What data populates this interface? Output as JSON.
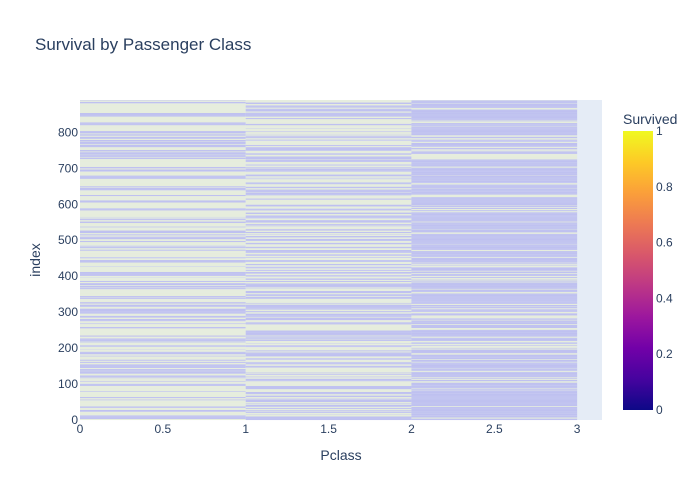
{
  "chart_data": {
    "type": "heatmap",
    "title": "Survival by Passenger Class",
    "xlabel": "Pclass",
    "ylabel": "index",
    "x": [
      0,
      1,
      2
    ],
    "x_cell_width": 1,
    "xlim": [
      0,
      3.15
    ],
    "ylim": [
      0,
      890
    ],
    "xticks": [
      "0",
      "0.5",
      "1",
      "1.5",
      "2",
      "2.5",
      "3"
    ],
    "xtick_values": [
      0,
      0.5,
      1,
      1.5,
      2,
      2.5,
      3
    ],
    "yticks": [
      "0",
      "100",
      "200",
      "300",
      "400",
      "500",
      "600",
      "700",
      "800"
    ],
    "ytick_values": [
      0,
      100,
      200,
      300,
      400,
      500,
      600,
      700,
      800
    ],
    "value_range": [
      0,
      1
    ],
    "colorbar": {
      "title": "Survived",
      "ticks": [
        "0",
        "0.2",
        "0.4",
        "0.6",
        "0.8",
        "1"
      ],
      "tick_values": [
        0,
        0.2,
        0.4,
        0.6,
        0.8,
        1
      ],
      "colorscale": [
        "#0d0887",
        "#46039f",
        "#7201a8",
        "#9c179e",
        "#bd3786",
        "#d8576b",
        "#ed7953",
        "#fb9f3a",
        "#fdca26",
        "#f0f921"
      ]
    },
    "cell_colors": {
      "zero": "#bfc1f0",
      "one": "#e6eddc"
    },
    "grid": true,
    "plot_background": "#e5ecf6"
  }
}
